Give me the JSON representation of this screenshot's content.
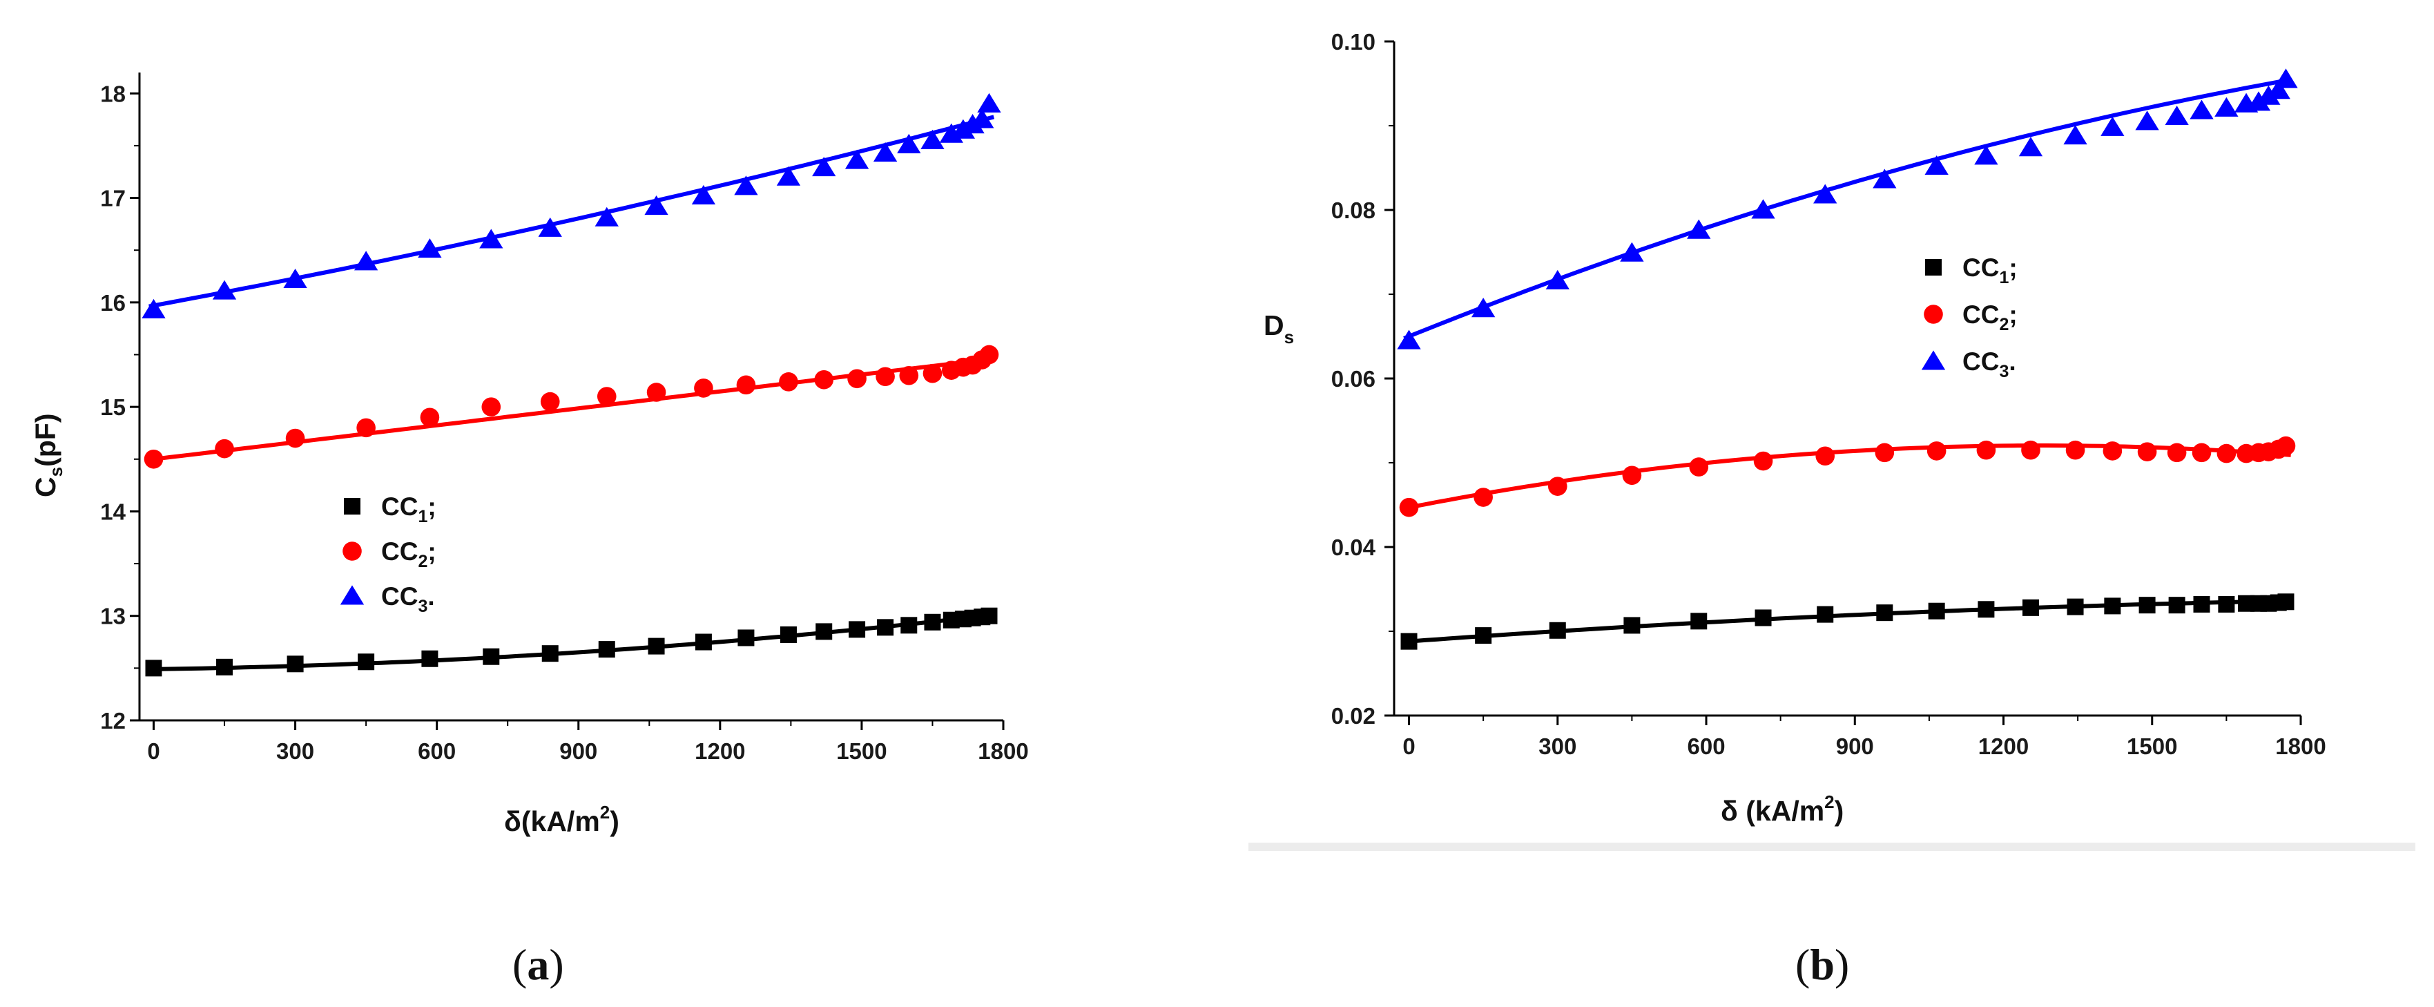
{
  "chart_data": [
    {
      "type": "scatter",
      "panel": "a",
      "caption": "(a)",
      "caption_letter": "a",
      "ylabel": "C",
      "ylabel_sub": "s",
      "ylabel_unit": "(pF)",
      "xlabel": "δ(kA/m",
      "xlabel_sup": "2",
      "xlabel_close": ")",
      "xlim": [
        -30,
        1800
      ],
      "ylim": [
        12,
        18.2
      ],
      "xticks": [
        0,
        300,
        600,
        900,
        1200,
        1500,
        1800
      ],
      "yticks": [
        12,
        13,
        14,
        15,
        16,
        17,
        18
      ],
      "ytick_labels": [
        "12",
        "13",
        "14",
        "15",
        "16",
        "17",
        "18"
      ],
      "legend_position": "center-left",
      "series": [
        {
          "name": "CC",
          "sub": "1",
          "suffix": ";",
          "marker": "square",
          "color": "#000000",
          "x": [
            0,
            150,
            300,
            450,
            585,
            715,
            840,
            960,
            1065,
            1165,
            1255,
            1345,
            1420,
            1490,
            1550,
            1600,
            1650,
            1690,
            1715,
            1735,
            1755,
            1770
          ],
          "y": [
            12.5,
            12.51,
            12.54,
            12.56,
            12.59,
            12.61,
            12.64,
            12.68,
            12.71,
            12.75,
            12.79,
            12.82,
            12.85,
            12.87,
            12.89,
            12.91,
            12.94,
            12.96,
            12.97,
            12.98,
            12.99,
            13.0
          ],
          "fit": [
            12.49,
            6.43e-05,
            1.278e-07
          ]
        },
        {
          "name": "CC",
          "sub": "2",
          "suffix": ";",
          "marker": "circle",
          "color": "#ff0000",
          "x": [
            0,
            150,
            300,
            450,
            585,
            715,
            840,
            960,
            1065,
            1165,
            1255,
            1345,
            1420,
            1490,
            1550,
            1600,
            1650,
            1690,
            1715,
            1735,
            1755,
            1770
          ],
          "y": [
            14.5,
            14.6,
            14.7,
            14.8,
            14.9,
            15.0,
            15.05,
            15.1,
            15.14,
            15.18,
            15.21,
            15.24,
            15.26,
            15.27,
            15.29,
            15.3,
            15.32,
            15.35,
            15.38,
            15.4,
            15.45,
            15.5
          ],
          "fit": [
            14.5,
            0.00054,
            0.0
          ]
        },
        {
          "name": "CC",
          "sub": "3",
          "suffix": ".",
          "marker": "triangle",
          "color": "#0000ff",
          "x": [
            0,
            150,
            300,
            450,
            585,
            715,
            840,
            960,
            1065,
            1165,
            1255,
            1345,
            1420,
            1490,
            1550,
            1600,
            1650,
            1690,
            1715,
            1735,
            1755,
            1770
          ],
          "y": [
            15.93,
            16.11,
            16.22,
            16.39,
            16.51,
            16.6,
            16.71,
            16.81,
            16.92,
            17.02,
            17.11,
            17.2,
            17.29,
            17.36,
            17.43,
            17.51,
            17.55,
            17.61,
            17.65,
            17.7,
            17.75,
            17.9
          ],
          "fit": [
            15.97,
            0.000836,
            1e-07
          ]
        }
      ]
    },
    {
      "type": "scatter",
      "panel": "b",
      "caption": "(b)",
      "caption_letter": "b",
      "ylabel": "D",
      "ylabel_sub": "s",
      "ylabel_unit": "",
      "xlabel": "δ (kA/m",
      "xlabel_sup": "2",
      "xlabel_close": ")",
      "xlim": [
        -30,
        1800
      ],
      "ylim": [
        0.02,
        0.1
      ],
      "xticks": [
        0,
        300,
        600,
        900,
        1200,
        1500,
        1800
      ],
      "yticks": [
        0.02,
        0.04,
        0.06,
        0.08,
        0.1
      ],
      "ytick_labels": [
        "0.02",
        "0.04",
        "0.06",
        "0.08",
        "0.10"
      ],
      "legend_position": "center-right",
      "series": [
        {
          "name": "CC",
          "sub": "1",
          "suffix": ";",
          "marker": "square",
          "color": "#000000",
          "x": [
            0,
            150,
            300,
            450,
            585,
            715,
            840,
            960,
            1065,
            1165,
            1255,
            1345,
            1420,
            1490,
            1550,
            1600,
            1650,
            1690,
            1715,
            1735,
            1755,
            1770
          ],
          "y": [
            0.0288,
            0.0295,
            0.0301,
            0.0307,
            0.0312,
            0.0316,
            0.032,
            0.0322,
            0.0324,
            0.0326,
            0.0328,
            0.0329,
            0.033,
            0.0331,
            0.0331,
            0.0332,
            0.0332,
            0.0333,
            0.0333,
            0.0333,
            0.0334,
            0.0335
          ],
          "fit": [
            0.0288,
            4.3e-06,
            -9e-10
          ]
        },
        {
          "name": "CC",
          "sub": "2",
          "suffix": ";",
          "marker": "circle",
          "color": "#ff0000",
          "x": [
            0,
            150,
            300,
            450,
            585,
            715,
            840,
            960,
            1065,
            1165,
            1255,
            1345,
            1420,
            1490,
            1550,
            1600,
            1650,
            1690,
            1715,
            1735,
            1755,
            1770
          ],
          "y": [
            0.0447,
            0.0459,
            0.0472,
            0.0485,
            0.0495,
            0.0502,
            0.0508,
            0.0512,
            0.0514,
            0.0515,
            0.0515,
            0.0515,
            0.0514,
            0.0513,
            0.0512,
            0.0512,
            0.0511,
            0.0511,
            0.0512,
            0.0513,
            0.0516,
            0.052
          ],
          "fit": [
            0.0447,
            1.15e-05,
            -4.5e-09
          ]
        },
        {
          "name": "CC",
          "sub": "3",
          "suffix": ".",
          "marker": "triangle",
          "color": "#0000ff",
          "x": [
            0,
            150,
            300,
            450,
            585,
            715,
            840,
            960,
            1065,
            1165,
            1255,
            1345,
            1420,
            1490,
            1550,
            1600,
            1650,
            1690,
            1715,
            1735,
            1755,
            1770
          ],
          "y": [
            0.0645,
            0.0683,
            0.0716,
            0.0749,
            0.0776,
            0.08,
            0.0818,
            0.0836,
            0.0852,
            0.0864,
            0.0874,
            0.0888,
            0.0898,
            0.0905,
            0.0911,
            0.0918,
            0.0921,
            0.0926,
            0.0928,
            0.0935,
            0.0942,
            0.0955
          ],
          "fit": [
            0.065,
            2.37e-05,
            -3.7e-09
          ]
        }
      ]
    }
  ]
}
